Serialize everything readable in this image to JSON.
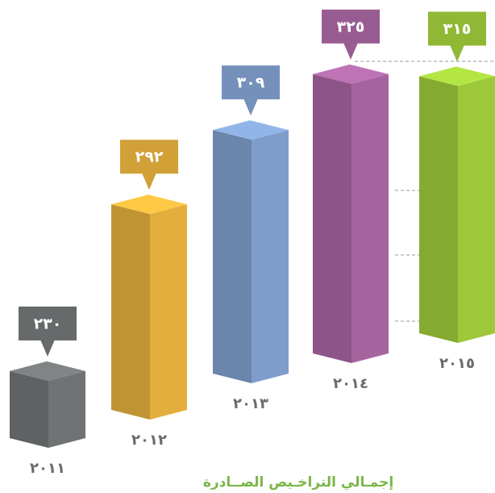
{
  "chart_data": {
    "type": "bar3d",
    "title": "إجمـالي التراخـيص الصــادرة",
    "categories": [
      "٢٠١١",
      "٢٠١٢",
      "٢٠١٣",
      "٢٠١٤",
      "٢٠١٥"
    ],
    "values": [
      230,
      292,
      309,
      325,
      315
    ],
    "value_labels": [
      "٢٣٠",
      "٢٩٢",
      "٣٠٩",
      "٣٢٥",
      "٣١٥"
    ],
    "colors": [
      "#6f7374",
      "#e3ae3c",
      "#7e9dcb",
      "#a6649f",
      "#9cc83a"
    ],
    "ylim": [
      200,
      330
    ]
  }
}
